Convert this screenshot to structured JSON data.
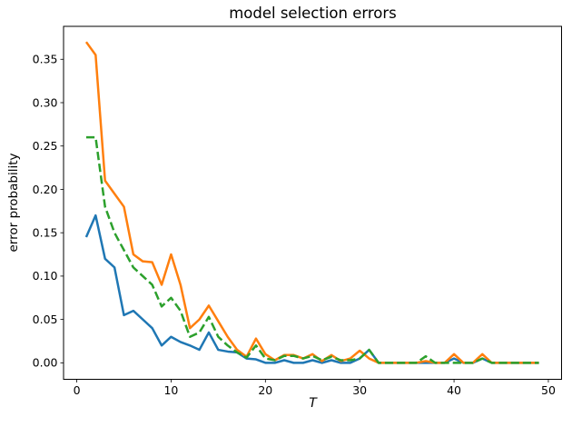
{
  "title": "model selection errors",
  "chart_data": {
    "type": "line",
    "title": "model selection errors",
    "xlabel": "T",
    "ylabel": "error probability",
    "grid": false,
    "legend": null,
    "xlim": [
      -1.4,
      51.4
    ],
    "ylim": [
      -0.019,
      0.388
    ],
    "xticks": [
      0,
      10,
      20,
      30,
      40,
      50
    ],
    "yticks": [
      0.0,
      0.05,
      0.1,
      0.15,
      0.2,
      0.25,
      0.3,
      0.35
    ],
    "ytick_labels": [
      "0.00",
      "0.05",
      "0.10",
      "0.15",
      "0.20",
      "0.25",
      "0.30",
      "0.35"
    ],
    "x": [
      1,
      2,
      3,
      4,
      5,
      6,
      7,
      8,
      9,
      10,
      11,
      12,
      13,
      14,
      15,
      16,
      17,
      18,
      19,
      20,
      21,
      22,
      23,
      24,
      25,
      26,
      27,
      28,
      29,
      30,
      31,
      32,
      33,
      34,
      35,
      36,
      37,
      38,
      39,
      40,
      41,
      42,
      43,
      44,
      45,
      46,
      47,
      48,
      49
    ],
    "series": [
      {
        "name": "blue-solid",
        "color": "#1f77b4",
        "style": "solid",
        "values": [
          0.145,
          0.17,
          0.12,
          0.11,
          0.055,
          0.06,
          0.05,
          0.04,
          0.02,
          0.03,
          0.024,
          0.02,
          0.015,
          0.035,
          0.015,
          0.013,
          0.012,
          0.005,
          0.004,
          0.0,
          0.0,
          0.003,
          0.0,
          0.0,
          0.003,
          0.0,
          0.003,
          0.0,
          0.0,
          0.005,
          0.015,
          0.0,
          0.0,
          0.0,
          0.0,
          0.0,
          0.0,
          0.0,
          0.0,
          0.005,
          0.0,
          0.0,
          0.005,
          0.0,
          0.0,
          0.0,
          0.0,
          0.0,
          0.0
        ]
      },
      {
        "name": "orange-solid",
        "color": "#ff7f0e",
        "style": "solid",
        "values": [
          0.37,
          0.355,
          0.21,
          0.195,
          0.18,
          0.125,
          0.117,
          0.116,
          0.09,
          0.125,
          0.09,
          0.04,
          0.05,
          0.066,
          0.048,
          0.03,
          0.015,
          0.007,
          0.028,
          0.01,
          0.003,
          0.009,
          0.009,
          0.005,
          0.01,
          0.002,
          0.009,
          0.002,
          0.005,
          0.014,
          0.005,
          0.0,
          0.0,
          0.0,
          0.0,
          0.0,
          0.002,
          0.0,
          0.0,
          0.01,
          0.0,
          0.0,
          0.01,
          0.0,
          0.0,
          0.0,
          0.0,
          0.0,
          0.0
        ]
      },
      {
        "name": "green-dashed",
        "color": "#2ca02c",
        "style": "dashed",
        "values": [
          0.26,
          0.26,
          0.18,
          0.15,
          0.13,
          0.11,
          0.1,
          0.09,
          0.065,
          0.075,
          0.06,
          0.03,
          0.035,
          0.053,
          0.03,
          0.02,
          0.012,
          0.006,
          0.02,
          0.005,
          0.003,
          0.008,
          0.008,
          0.005,
          0.008,
          0.003,
          0.007,
          0.003,
          0.003,
          0.005,
          0.015,
          0.0,
          0.0,
          0.0,
          0.0,
          0.0,
          0.0075,
          0.0,
          0.0,
          0.0,
          0.0,
          0.0,
          0.005,
          0.0,
          0.0,
          0.0,
          0.0,
          0.0,
          0.0
        ]
      }
    ]
  }
}
